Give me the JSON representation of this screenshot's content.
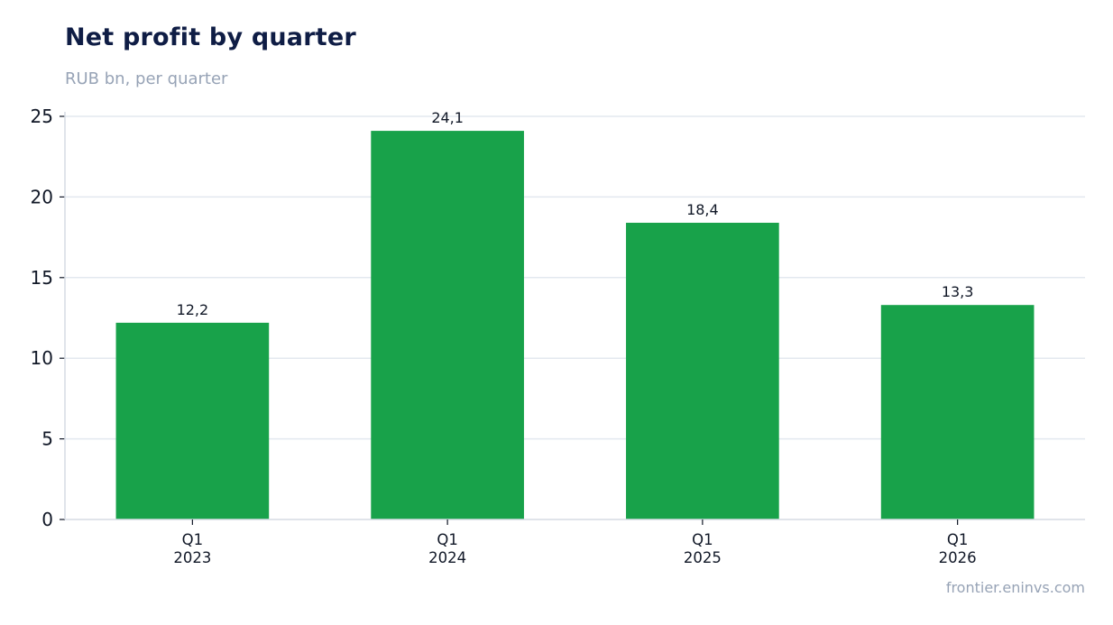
{
  "header": {
    "title": "Net profit by quarter",
    "subtitle": "RUB bn, per quarter"
  },
  "footer": {
    "source": "frontier.eninvs.com"
  },
  "colors": {
    "bar": "#18a24a",
    "grid": "#e3e8ef",
    "axis": "#d5dbe4",
    "tick_text": "#111827",
    "title": "#0f1d45",
    "muted": "#97a3b6"
  },
  "chart_data": {
    "type": "bar",
    "title": "Net profit by quarter",
    "subtitle": "RUB bn, per quarter",
    "categories": [
      [
        "Q1",
        "2023"
      ],
      [
        "Q1",
        "2024"
      ],
      [
        "Q1",
        "2025"
      ],
      [
        "Q1",
        "2026"
      ]
    ],
    "values": [
      12.2,
      24.1,
      18.4,
      13.3
    ],
    "value_labels": [
      "12,2",
      "24,1",
      "18,4",
      "13,3"
    ],
    "ylim": [
      0,
      25
    ],
    "yticks": [
      0,
      5,
      10,
      15,
      20,
      25
    ],
    "grid": true,
    "legend": "none"
  }
}
